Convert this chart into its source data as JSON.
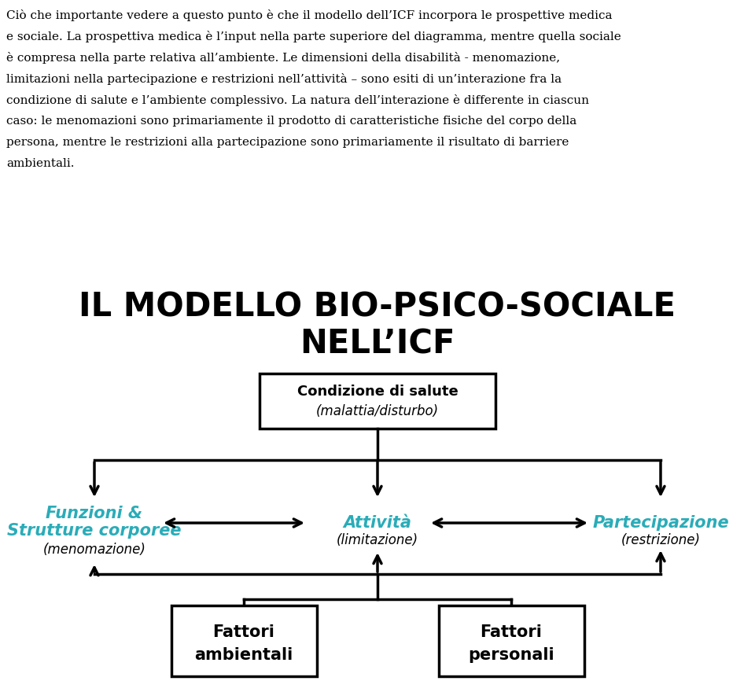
{
  "bg_color": "#ffffff",
  "text_color": "#000000",
  "teal_color": "#2aacb8",
  "paragraph_lines": [
    "Ciò che importante vedere a questo punto è che il modello dell’ICF incorpora le prospettive medica",
    "e sociale. La prospettiva medica è l’input nella parte superiore del diagramma, mentre quella sociale",
    "è compresa nella parte relativa all’ambiente. Le dimensioni della disabilità - menomazione,",
    "limitazioni nella partecipazione e restrizioni nell’attività – sono esiti di un’interazione fra la",
    "condizione di salute e l’ambiente complessivo. La natura dell’interazione è differente in ciascun",
    "caso: le menomazioni sono primariamente il prodotto di caratteristiche fisiche del corpo della",
    "persona, mentre le restrizioni alla partecipazione sono primariamente il risultato di barriere",
    "ambientali."
  ],
  "title_line1": "IL MODELLO BIO-PSICO-SOCIALE",
  "title_line2": "NELL’ICF",
  "box_top_label1": "Condizione di salute",
  "box_top_label2": "(malattia/disturbo)",
  "node_left_line1": "Funzioni &",
  "node_left_line2": "Strutture corporee",
  "node_left_line3": "(menomazione)",
  "node_center_line1": "Attività",
  "node_center_line2": "(limitazione)",
  "node_right_line1": "Partecipazione",
  "node_right_line2": "(restrizione)",
  "box_bottom_left1": "Fattori",
  "box_bottom_left2": "ambientali",
  "box_bottom_right1": "Fattori",
  "box_bottom_right2": "personali",
  "lw": 2.5,
  "arrow_mutation": 18
}
